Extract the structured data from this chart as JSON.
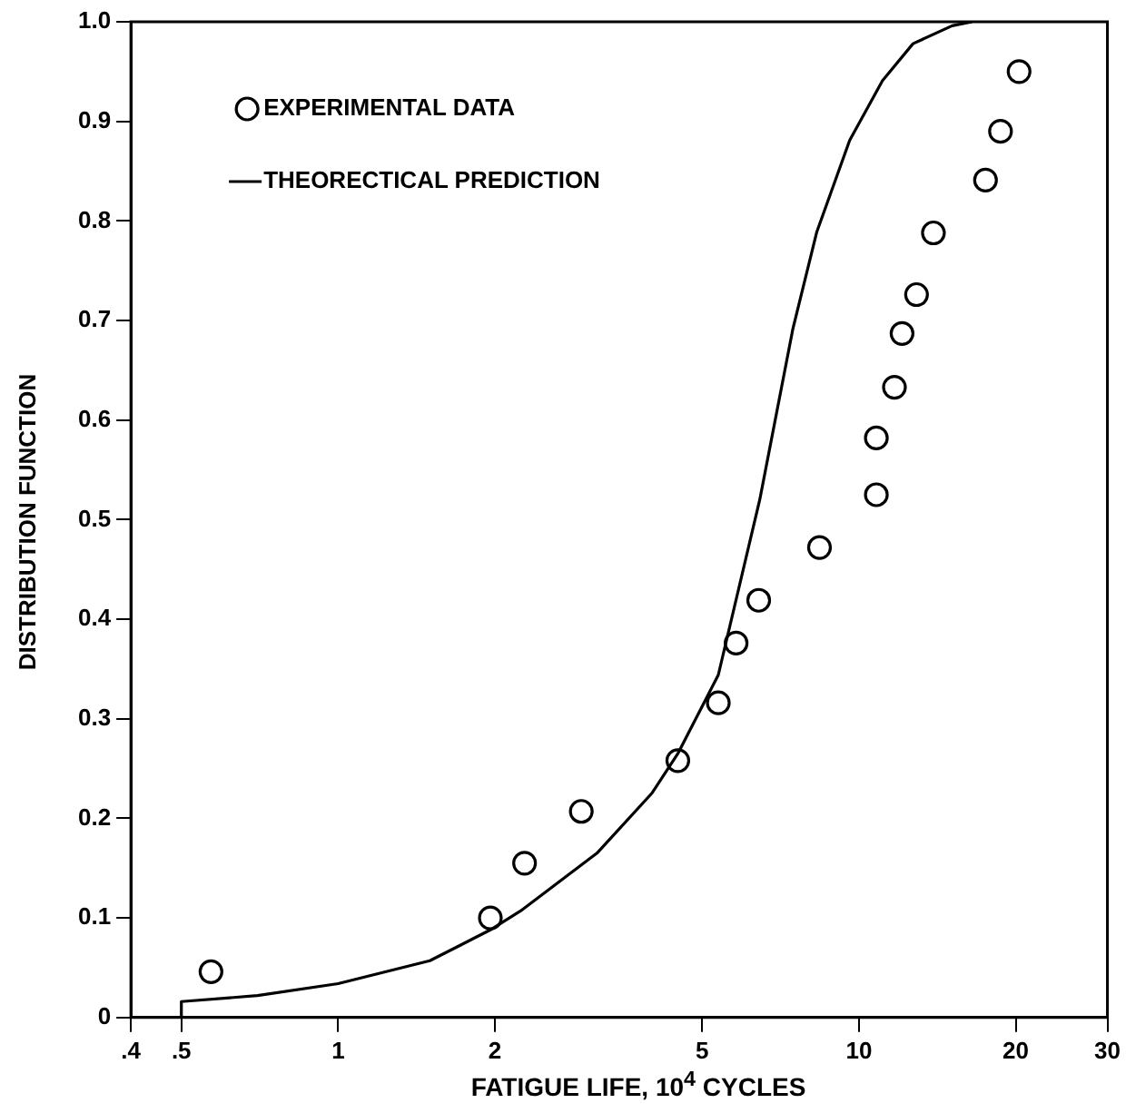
{
  "chart_data": {
    "type": "scatter",
    "xlabel": "FATIGUE LIFE, 10$^{4}$ CYCLES",
    "ylabel": "DISTRIBUTION FUNCTION",
    "log": "x",
    "grid": false,
    "legend": "top left",
    "xlim": [
      0.4,
      30
    ],
    "xticks": [
      {
        "value": 0.4,
        "label": ".4"
      },
      {
        "value": 0.5,
        "label": ".5"
      },
      1,
      2,
      5,
      10,
      20,
      30
    ],
    "ylim": [
      0,
      1
    ],
    "yticks": [
      0,
      0.1,
      0.2,
      0.3,
      0.4,
      0.5,
      0.6,
      0.7,
      0.8,
      0.9,
      {
        "value": 1,
        "label": "1.0"
      }
    ],
    "series": [
      {
        "name": "EXPERIMENTAL DATA",
        "type": "scatter",
        "marker": "circle",
        "color": "#000000",
        "x": [
          0.57,
          1.96,
          2.28,
          2.93,
          4.49,
          5.37,
          5.81,
          6.42,
          8.4,
          10.8,
          10.8,
          11.7,
          12.1,
          12.9,
          13.9,
          17.5,
          18.7,
          20.3
        ],
        "values": [
          0.046,
          0.1,
          0.155,
          0.207,
          0.258,
          0.316,
          0.376,
          0.419,
          0.472,
          0.525,
          0.582,
          0.633,
          0.687,
          0.726,
          0.788,
          0.841,
          0.89,
          0.95
        ]
      },
      {
        "name": "THEORECTICAL PREDICTION",
        "type": "line",
        "marker": "none",
        "line_style": "solid",
        "color": "#000000",
        "x": [
          0.5,
          0.5,
          0.7,
          1.0,
          1.5,
          1.96,
          2.24,
          3.14,
          4.0,
          4.49,
          5.37,
          6.45,
          7.47,
          8.3,
          9.6,
          11.1,
          12.7,
          15.1,
          16.5
        ],
        "values": [
          0,
          0.016,
          0.022,
          0.034,
          0.057,
          0.088,
          0.107,
          0.165,
          0.225,
          0.265,
          0.344,
          0.52,
          0.692,
          0.789,
          0.881,
          0.941,
          0.978,
          0.996,
          1.0
        ]
      }
    ]
  }
}
